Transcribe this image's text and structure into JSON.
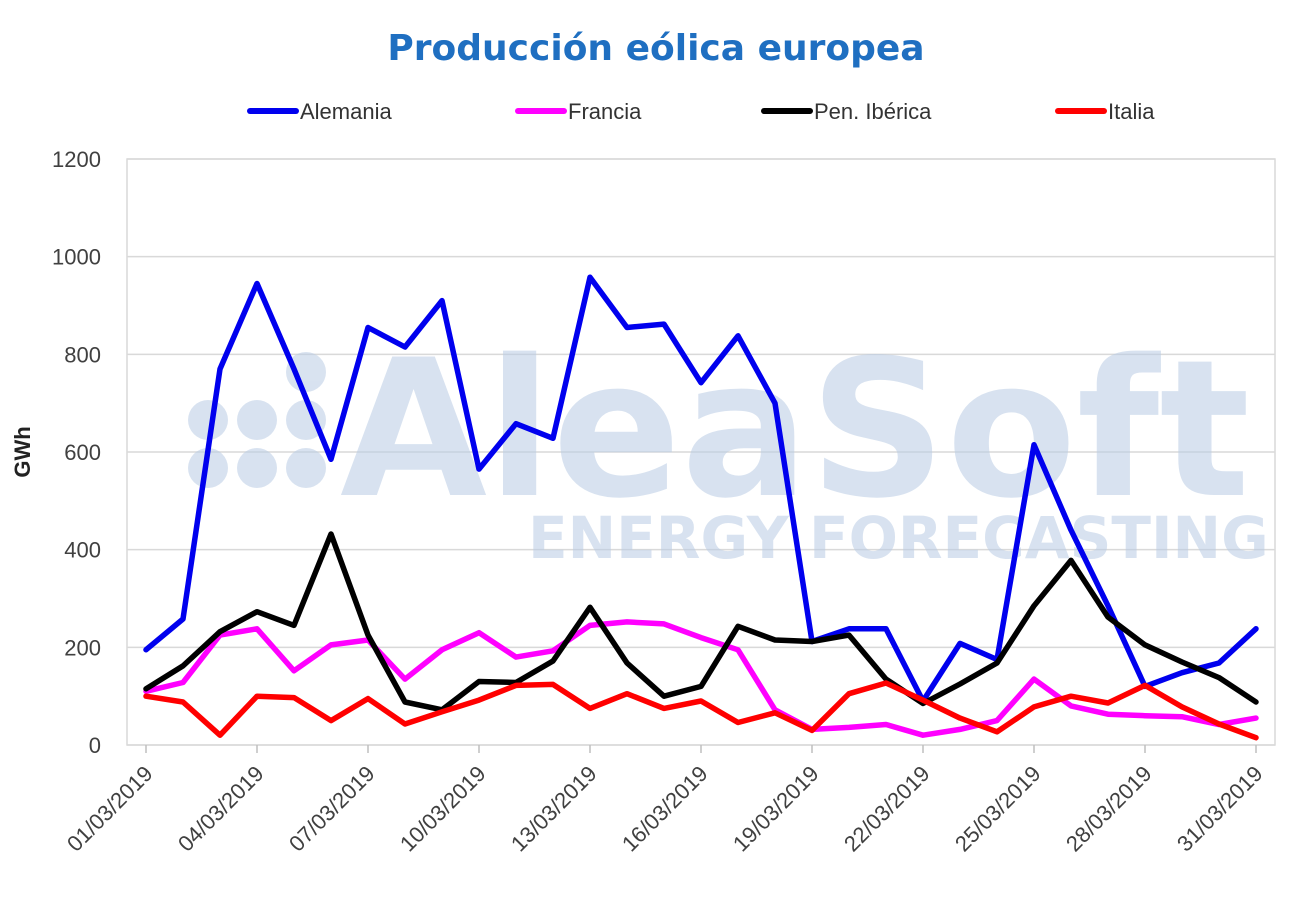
{
  "chart_data": {
    "type": "line",
    "title": "Producción eólica europea",
    "xlabel": "",
    "ylabel": "GWh",
    "ylim": [
      0,
      1200
    ],
    "yticks": [
      "0",
      "200",
      "400",
      "600",
      "800",
      "1000",
      "1200"
    ],
    "grid": true,
    "legend_position": "top",
    "x_tick_labels": [
      "01/03/2019",
      "04/03/2019",
      "07/03/2019",
      "10/03/2019",
      "13/03/2019",
      "16/03/2019",
      "19/03/2019",
      "22/03/2019",
      "25/03/2019",
      "28/03/2019",
      "31/03/2019"
    ],
    "series": [
      {
        "name": "Alemania",
        "color": "#0000ee",
        "values": [
          195,
          258,
          770,
          945,
          770,
          585,
          855,
          815,
          910,
          565,
          658,
          628,
          958,
          855,
          862,
          742,
          838,
          700,
          212,
          238,
          238,
          90,
          208,
          175,
          615,
          440,
          285,
          120,
          148,
          168,
          238
        ]
      },
      {
        "name": "Francia",
        "color": "#ff00ff",
        "values": [
          110,
          128,
          225,
          238,
          152,
          205,
          215,
          135,
          195,
          230,
          180,
          193,
          245,
          252,
          248,
          220,
          195,
          72,
          32,
          36,
          42,
          20,
          32,
          50,
          135,
          80,
          63,
          60,
          58,
          42,
          55
        ]
      },
      {
        "name": "Pen. Ibérica",
        "color": "#000000",
        "values": [
          115,
          162,
          232,
          273,
          245,
          432,
          225,
          88,
          72,
          130,
          128,
          172,
          282,
          168,
          100,
          120,
          243,
          215,
          212,
          225,
          135,
          85,
          125,
          168,
          285,
          378,
          262,
          205,
          170,
          138,
          88
        ]
      },
      {
        "name": "Italia",
        "color": "#ff0000",
        "values": [
          100,
          88,
          20,
          100,
          97,
          50,
          95,
          43,
          68,
          92,
          122,
          124,
          75,
          105,
          75,
          90,
          46,
          66,
          30,
          105,
          127,
          92,
          55,
          27,
          78,
          100,
          86,
          122,
          78,
          43,
          15
        ]
      }
    ]
  },
  "watermark": {
    "brand": "AleaSoft",
    "tagline": "ENERGY FORECASTING"
  }
}
